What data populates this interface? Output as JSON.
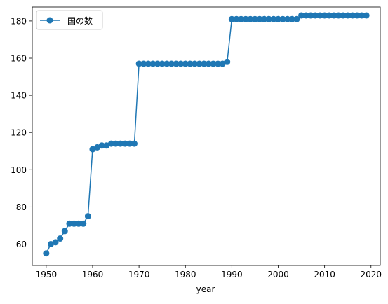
{
  "chart_data": {
    "type": "line",
    "title": "",
    "xlabel": "year",
    "ylabel": "",
    "xlim": [
      1947,
      2022
    ],
    "ylim": [
      48.5,
      187.5
    ],
    "x_ticks": [
      1950,
      1960,
      1970,
      1980,
      1990,
      2000,
      2010,
      2020
    ],
    "y_ticks": [
      60,
      80,
      100,
      120,
      140,
      160,
      180
    ],
    "grid": false,
    "legend_position": "upper-left",
    "series": [
      {
        "name": "国の数",
        "color": "#1f77b4",
        "marker": "circle",
        "x": [
          1950,
          1951,
          1952,
          1953,
          1954,
          1955,
          1956,
          1957,
          1958,
          1959,
          1960,
          1961,
          1962,
          1963,
          1964,
          1965,
          1966,
          1967,
          1968,
          1969,
          1970,
          1971,
          1972,
          1973,
          1974,
          1975,
          1976,
          1977,
          1978,
          1979,
          1980,
          1981,
          1982,
          1983,
          1984,
          1985,
          1986,
          1987,
          1988,
          1989,
          1990,
          1991,
          1992,
          1993,
          1994,
          1995,
          1996,
          1997,
          1998,
          1999,
          2000,
          2001,
          2002,
          2003,
          2004,
          2005,
          2006,
          2007,
          2008,
          2009,
          2010,
          2011,
          2012,
          2013,
          2014,
          2015,
          2016,
          2017,
          2018,
          2019
        ],
        "y": [
          55,
          60,
          61,
          63,
          67,
          71,
          71,
          71,
          71,
          75,
          111,
          112,
          113,
          113,
          114,
          114,
          114,
          114,
          114,
          114,
          157,
          157,
          157,
          157,
          157,
          157,
          157,
          157,
          157,
          157,
          157,
          157,
          157,
          157,
          157,
          157,
          157,
          157,
          157,
          158,
          181,
          181,
          181,
          181,
          181,
          181,
          181,
          181,
          181,
          181,
          181,
          181,
          181,
          181,
          181,
          183,
          183,
          183,
          183,
          183,
          183,
          183,
          183,
          183,
          183,
          183,
          183,
          183,
          183,
          183
        ]
      }
    ]
  }
}
